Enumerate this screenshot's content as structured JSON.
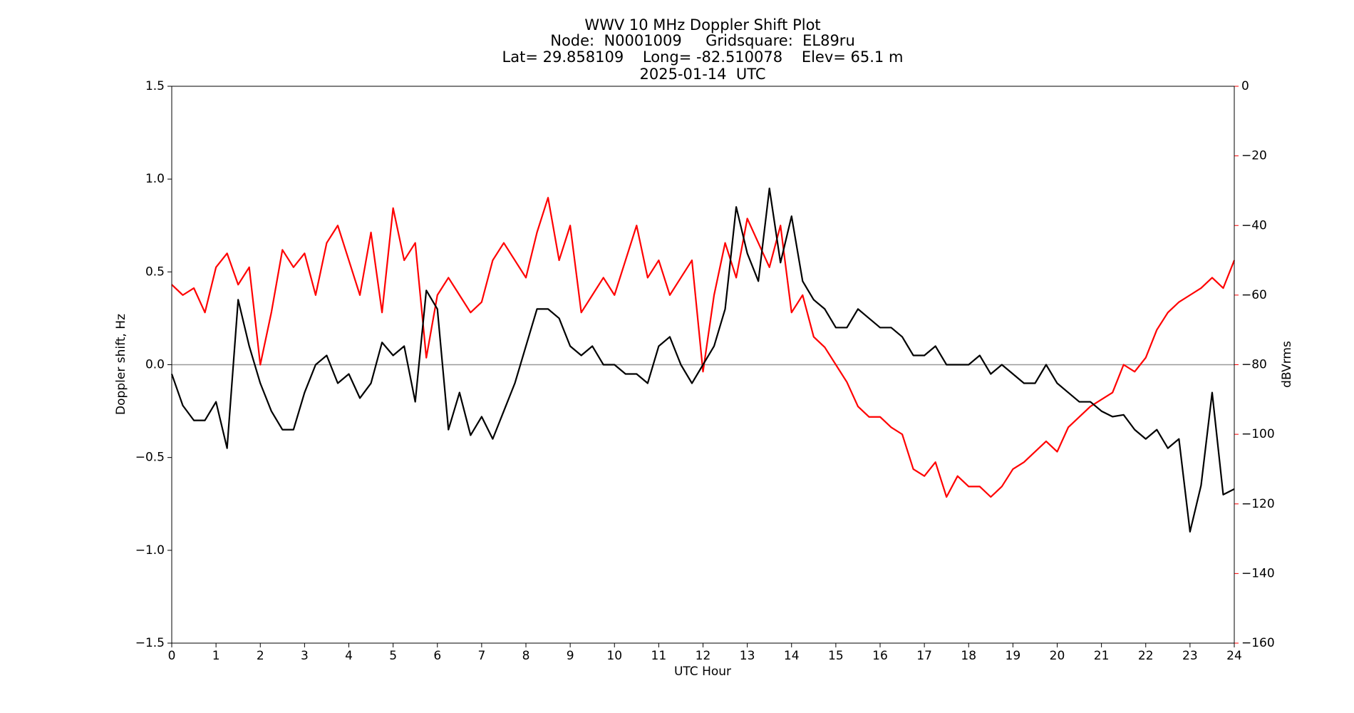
{
  "chart_data": {
    "type": "line",
    "title": [
      "WWV 10 MHz Doppler Shift Plot",
      "Node:  N0001009     Gridsquare:  EL89ru",
      "Lat= 29.858109    Long= -82.510078    Elev= 65.1 m",
      "2025-01-14  UTC"
    ],
    "x_label": "UTC Hour",
    "y_label": "Doppler shift, Hz",
    "y2_label": "dBVrms",
    "y2_color": "#ff0000",
    "x": [
      0,
      0.25,
      0.5,
      0.75,
      1,
      1.25,
      1.5,
      1.75,
      2,
      2.25,
      2.5,
      2.75,
      3,
      3.25,
      3.5,
      3.75,
      4,
      4.25,
      4.5,
      4.75,
      5,
      5.25,
      5.5,
      5.75,
      6,
      6.25,
      6.5,
      6.75,
      7,
      7.25,
      7.5,
      7.75,
      8,
      8.25,
      8.5,
      8.75,
      9,
      9.25,
      9.5,
      9.75,
      10,
      10.25,
      10.5,
      10.75,
      11,
      11.25,
      11.5,
      11.75,
      12,
      12.25,
      12.5,
      12.75,
      13,
      13.25,
      13.5,
      13.75,
      14,
      14.25,
      14.5,
      14.75,
      15,
      15.25,
      15.5,
      15.75,
      16,
      16.25,
      16.5,
      16.75,
      17,
      17.25,
      17.5,
      17.75,
      18,
      18.25,
      18.5,
      18.75,
      19,
      19.25,
      19.5,
      19.75,
      20,
      20.25,
      20.5,
      20.75,
      21,
      21.25,
      21.5,
      21.75,
      22,
      22.25,
      22.5,
      22.75,
      23,
      23.25,
      23.5,
      23.75,
      24
    ],
    "series": [
      {
        "name": "Doppler shift",
        "color": "#000000",
        "axis": "y",
        "values": [
          -0.05,
          -0.22,
          -0.3,
          -0.3,
          -0.2,
          -0.45,
          0.35,
          0.1,
          -0.1,
          -0.25,
          -0.35,
          -0.35,
          -0.15,
          0.0,
          0.05,
          -0.1,
          -0.05,
          -0.18,
          -0.1,
          0.12,
          0.05,
          0.1,
          -0.2,
          0.4,
          0.3,
          -0.35,
          -0.15,
          -0.38,
          -0.28,
          -0.4,
          -0.25,
          -0.1,
          0.1,
          0.3,
          0.3,
          0.25,
          0.1,
          0.05,
          0.1,
          0.0,
          0.0,
          -0.05,
          -0.05,
          -0.1,
          0.1,
          0.15,
          0.0,
          -0.1,
          0.0,
          0.1,
          0.3,
          0.85,
          0.6,
          0.45,
          0.95,
          0.55,
          0.8,
          0.45,
          0.35,
          0.3,
          0.2,
          0.2,
          0.3,
          0.25,
          0.2,
          0.2,
          0.15,
          0.05,
          0.05,
          0.1,
          0.0,
          0.0,
          0.0,
          0.05,
          -0.05,
          0.0,
          -0.05,
          -0.1,
          -0.1,
          0.0,
          -0.1,
          -0.15,
          -0.2,
          -0.2,
          -0.25,
          -0.28,
          -0.27,
          -0.35,
          -0.4,
          -0.35,
          -0.45,
          -0.4,
          -0.9,
          -0.65,
          -0.15,
          -0.7,
          -0.67
        ]
      },
      {
        "name": "dBVrms",
        "color": "#ff0000",
        "axis": "y2",
        "values": [
          -57,
          -60,
          -58,
          -65,
          -52,
          -48,
          -57,
          -52,
          -80,
          -65,
          -47,
          -52,
          -48,
          -60,
          -45,
          -40,
          -50,
          -60,
          -42,
          -65,
          -35,
          -50,
          -45,
          -78,
          -60,
          -55,
          -60,
          -65,
          -62,
          -50,
          -45,
          -50,
          -55,
          -42,
          -32,
          -50,
          -40,
          -65,
          -60,
          -55,
          -60,
          -50,
          -40,
          -55,
          -50,
          -60,
          -55,
          -50,
          -82,
          -60,
          -45,
          -55,
          -38,
          -45,
          -52,
          -40,
          -65,
          -60,
          -72,
          -75,
          -80,
          -85,
          -92,
          -95,
          -95,
          -98,
          -100,
          -110,
          -112,
          -108,
          -118,
          -112,
          -115,
          -115,
          -118,
          -115,
          -110,
          -108,
          -105,
          -102,
          -105,
          -98,
          -95,
          -92,
          -90,
          -88,
          -80,
          -82,
          -78,
          -70,
          -65,
          -62,
          -60,
          -58,
          -55,
          -58,
          -50
        ]
      }
    ],
    "xlim": [
      0,
      24
    ],
    "xticks": [
      0,
      1,
      2,
      3,
      4,
      5,
      6,
      7,
      8,
      9,
      10,
      11,
      12,
      13,
      14,
      15,
      16,
      17,
      18,
      19,
      20,
      21,
      22,
      23,
      24
    ],
    "ylim": [
      -1.5,
      1.5
    ],
    "yticks": [
      {
        "value": -1.5,
        "label": "−1.5"
      },
      {
        "value": -1.0,
        "label": "−1.0"
      },
      {
        "value": -0.5,
        "label": "−0.5"
      },
      {
        "value": 0,
        "label": "0.0"
      },
      0.5,
      {
        "value": 1.0,
        "label": "1.0"
      },
      1.5
    ],
    "y2lim": [
      -160,
      0
    ],
    "y2ticks": [
      {
        "value": -160,
        "label": "−160"
      },
      {
        "value": -140,
        "label": "−140"
      },
      {
        "value": -120,
        "label": "−120"
      },
      {
        "value": -100,
        "label": "−100"
      },
      {
        "value": -80,
        "label": "−80"
      },
      {
        "value": -60,
        "label": "−60"
      },
      {
        "value": -40,
        "label": "−40"
      },
      {
        "value": -20,
        "label": "−20"
      },
      0
    ]
  }
}
